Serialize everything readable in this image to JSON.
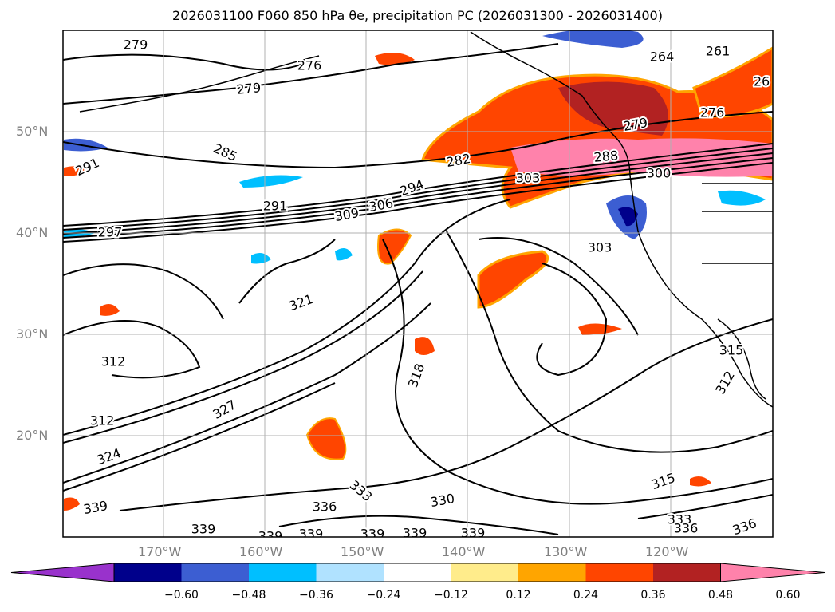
{
  "title": "2026031100 F060 850 hPa θe, precipitation PC (2026031300 - 2026031400)",
  "lat_labels": [
    "50°N",
    "40°N",
    "30°N",
    "20°N"
  ],
  "lon_labels": [
    "170°W",
    "160°W",
    "150°W",
    "140°W",
    "130°W",
    "120°W"
  ],
  "colorbar": {
    "ticks": [
      "−0.60",
      "−0.48",
      "−0.36",
      "−0.24",
      "−0.12",
      "0.12",
      "0.24",
      "0.36",
      "0.48",
      "0.60"
    ],
    "colors": [
      "#9932cc",
      "#00008b",
      "#3c5ed2",
      "#00bfff",
      "#b0e2ff",
      "#ffffff",
      "#ffec8b",
      "#ffa500",
      "#ff4500",
      "#b22222",
      "#ff82ab"
    ]
  },
  "contour_labels": [
    {
      "text": "279"
    },
    {
      "text": "276"
    },
    {
      "text": "279"
    },
    {
      "text": "264"
    },
    {
      "text": "261"
    },
    {
      "text": "26"
    },
    {
      "text": "276"
    },
    {
      "text": "279"
    },
    {
      "text": "285"
    },
    {
      "text": "291"
    },
    {
      "text": "282"
    },
    {
      "text": "288"
    },
    {
      "text": "303"
    },
    {
      "text": "300"
    },
    {
      "text": "294"
    },
    {
      "text": "291"
    },
    {
      "text": "309"
    },
    {
      "text": "306"
    },
    {
      "text": "297"
    },
    {
      "text": "303"
    },
    {
      "text": "321"
    },
    {
      "text": "312"
    },
    {
      "text": "318"
    },
    {
      "text": "315"
    },
    {
      "text": "312"
    },
    {
      "text": "312"
    },
    {
      "text": "327"
    },
    {
      "text": "324"
    },
    {
      "text": "333"
    },
    {
      "text": "330"
    },
    {
      "text": "315"
    },
    {
      "text": "336"
    },
    {
      "text": "333"
    },
    {
      "text": "336"
    },
    {
      "text": "336"
    },
    {
      "text": "339"
    },
    {
      "text": "339"
    },
    {
      "text": "339"
    },
    {
      "text": "339"
    },
    {
      "text": "339"
    },
    {
      "text": "339"
    },
    {
      "text": "339"
    }
  ]
}
